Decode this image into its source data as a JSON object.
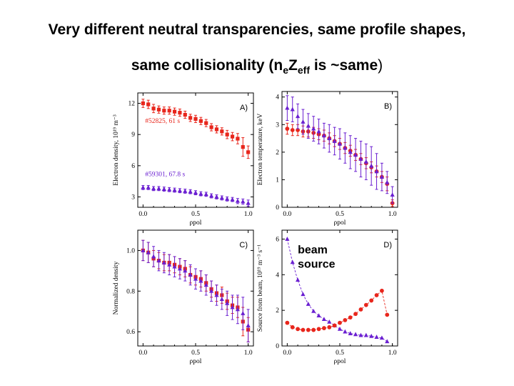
{
  "title_line1": "Very different neutral transparencies, same profile shapes,",
  "title_line2": {
    "prefix": "same collisionality (n",
    "sub1": "e",
    "mid": "Z",
    "sub2": "eff",
    "suffix": " is ~same",
    "close": ")"
  },
  "colors": {
    "red": "#e8261c",
    "purple": "#6a1fd1"
  },
  "chart_data": [
    {
      "id": "A",
      "panel_label": "A)",
      "type": "scatter",
      "ylabel": "Electron density, 10¹⁹ m⁻³",
      "xlabel": "ρpol",
      "xlim": [
        -0.05,
        1.05
      ],
      "ylim": [
        2.0,
        13.0
      ],
      "xticks": [
        0.0,
        0.5,
        1.0
      ],
      "xtick_labels": [
        "0.0",
        "0.5",
        "1.0"
      ],
      "yticks": [
        3,
        6,
        9,
        12
      ],
      "ytick_labels": [
        "3",
        "6",
        "9",
        "12"
      ],
      "annotations": [
        {
          "text": "#52825,  61 s",
          "x": 0.02,
          "y": 10.1,
          "color": "red"
        },
        {
          "text": "#59301,  67.8 s",
          "x": 0.02,
          "y": 5.0,
          "color": "purple"
        }
      ],
      "series": [
        {
          "name": "#52825, 61 s",
          "color": "red",
          "marker": "square",
          "x": [
            0.0,
            0.05,
            0.1,
            0.15,
            0.2,
            0.25,
            0.3,
            0.35,
            0.4,
            0.45,
            0.5,
            0.55,
            0.6,
            0.65,
            0.7,
            0.75,
            0.8,
            0.85,
            0.9,
            0.95,
            1.0
          ],
          "y": [
            12.0,
            11.9,
            11.5,
            11.4,
            11.3,
            11.3,
            11.2,
            11.1,
            10.9,
            10.6,
            10.5,
            10.3,
            10.1,
            9.7,
            9.5,
            9.3,
            9.0,
            8.8,
            8.6,
            7.8,
            7.3
          ],
          "err": [
            0.4,
            0.4,
            0.4,
            0.35,
            0.35,
            0.35,
            0.35,
            0.35,
            0.35,
            0.35,
            0.35,
            0.35,
            0.35,
            0.35,
            0.35,
            0.35,
            0.4,
            0.4,
            0.5,
            0.9,
            0.6
          ]
        },
        {
          "name": "#59301, 67.8 s",
          "color": "purple",
          "marker": "triangle",
          "x": [
            0.0,
            0.05,
            0.1,
            0.15,
            0.2,
            0.25,
            0.3,
            0.35,
            0.4,
            0.45,
            0.5,
            0.55,
            0.6,
            0.65,
            0.7,
            0.75,
            0.8,
            0.85,
            0.9,
            0.95,
            1.0
          ],
          "y": [
            3.9,
            3.9,
            3.8,
            3.8,
            3.75,
            3.7,
            3.65,
            3.6,
            3.55,
            3.5,
            3.4,
            3.3,
            3.25,
            3.1,
            3.0,
            2.9,
            2.8,
            2.75,
            2.6,
            2.55,
            2.4
          ],
          "err": [
            0.2,
            0.2,
            0.2,
            0.2,
            0.2,
            0.2,
            0.2,
            0.2,
            0.2,
            0.2,
            0.2,
            0.2,
            0.2,
            0.2,
            0.2,
            0.2,
            0.2,
            0.2,
            0.25,
            0.25,
            0.3
          ]
        }
      ]
    },
    {
      "id": "B",
      "panel_label": "B)",
      "type": "scatter",
      "ylabel": "Electron temperature, keV",
      "xlabel": "ρpol",
      "xlim": [
        -0.05,
        1.05
      ],
      "ylim": [
        0,
        4.2
      ],
      "xticks": [
        0.0,
        0.5,
        1.0
      ],
      "xtick_labels": [
        "0.0",
        "0.5",
        "1.0"
      ],
      "yticks": [
        0,
        1,
        2,
        3,
        4
      ],
      "ytick_labels": [
        "0",
        "1",
        "2",
        "3",
        "4"
      ],
      "annotations": [],
      "series": [
        {
          "name": "#52825",
          "color": "red",
          "marker": "circle",
          "x": [
            0.0,
            0.05,
            0.1,
            0.15,
            0.2,
            0.25,
            0.3,
            0.35,
            0.4,
            0.45,
            0.5,
            0.55,
            0.6,
            0.65,
            0.7,
            0.75,
            0.8,
            0.85,
            0.9,
            0.95,
            1.0
          ],
          "y": [
            2.85,
            2.8,
            2.8,
            2.75,
            2.75,
            2.7,
            2.65,
            2.6,
            2.5,
            2.4,
            2.3,
            2.15,
            2.05,
            1.9,
            1.75,
            1.6,
            1.45,
            1.3,
            1.1,
            0.85,
            0.15
          ],
          "err": [
            0.2,
            0.2,
            0.2,
            0.2,
            0.2,
            0.2,
            0.2,
            0.2,
            0.2,
            0.2,
            0.2,
            0.2,
            0.2,
            0.2,
            0.2,
            0.2,
            0.2,
            0.2,
            0.2,
            0.25,
            0.12
          ]
        },
        {
          "name": "#59301",
          "color": "purple",
          "marker": "triangle",
          "x": [
            0.0,
            0.05,
            0.1,
            0.15,
            0.2,
            0.25,
            0.3,
            0.35,
            0.4,
            0.45,
            0.5,
            0.55,
            0.6,
            0.65,
            0.7,
            0.75,
            0.8,
            0.85,
            0.9,
            0.95,
            1.0
          ],
          "y": [
            3.6,
            3.55,
            3.3,
            3.1,
            2.95,
            2.85,
            2.75,
            2.6,
            2.5,
            2.4,
            2.3,
            2.15,
            2.0,
            1.9,
            1.75,
            1.65,
            1.5,
            1.3,
            1.1,
            0.9,
            0.45
          ],
          "err": [
            0.45,
            0.45,
            0.45,
            0.45,
            0.45,
            0.45,
            0.45,
            0.45,
            0.5,
            0.5,
            0.55,
            0.55,
            0.6,
            0.6,
            0.65,
            0.65,
            0.7,
            0.65,
            0.5,
            0.4,
            0.3
          ]
        }
      ]
    },
    {
      "id": "C",
      "panel_label": "C)",
      "type": "scatter",
      "ylabel": "Normalized density",
      "xlabel": "ρpol",
      "xlim": [
        -0.05,
        1.05
      ],
      "ylim": [
        0.53,
        1.1
      ],
      "xticks": [
        0.0,
        0.5,
        1.0
      ],
      "xtick_labels": [
        "0.0",
        "0.5",
        "1.0"
      ],
      "yticks": [
        0.6,
        0.8,
        1.0
      ],
      "ytick_labels": [
        "0.6",
        "0.8",
        "1.0"
      ],
      "annotations": [],
      "series": [
        {
          "name": "#52825",
          "color": "red",
          "marker": "square",
          "x": [
            0.0,
            0.05,
            0.1,
            0.15,
            0.2,
            0.25,
            0.3,
            0.35,
            0.4,
            0.45,
            0.5,
            0.55,
            0.6,
            0.65,
            0.7,
            0.75,
            0.8,
            0.85,
            0.9,
            0.95,
            1.0
          ],
          "y": [
            1.0,
            0.99,
            0.96,
            0.95,
            0.94,
            0.94,
            0.93,
            0.92,
            0.91,
            0.88,
            0.87,
            0.86,
            0.84,
            0.81,
            0.79,
            0.78,
            0.75,
            0.73,
            0.72,
            0.65,
            0.61
          ],
          "err": [
            0.05,
            0.05,
            0.04,
            0.04,
            0.04,
            0.04,
            0.04,
            0.04,
            0.04,
            0.04,
            0.04,
            0.04,
            0.04,
            0.04,
            0.04,
            0.04,
            0.04,
            0.04,
            0.05,
            0.07,
            0.06
          ]
        },
        {
          "name": "#59301",
          "color": "purple",
          "marker": "triangle",
          "x": [
            0.0,
            0.05,
            0.1,
            0.15,
            0.2,
            0.25,
            0.3,
            0.35,
            0.4,
            0.45,
            0.5,
            0.55,
            0.6,
            0.65,
            0.7,
            0.75,
            0.8,
            0.85,
            0.9,
            0.95,
            1.0
          ],
          "y": [
            1.0,
            0.99,
            0.97,
            0.95,
            0.94,
            0.93,
            0.92,
            0.91,
            0.9,
            0.88,
            0.86,
            0.85,
            0.83,
            0.8,
            0.78,
            0.76,
            0.74,
            0.72,
            0.71,
            0.69,
            0.63
          ],
          "err": [
            0.05,
            0.05,
            0.05,
            0.05,
            0.05,
            0.05,
            0.05,
            0.05,
            0.05,
            0.05,
            0.05,
            0.05,
            0.05,
            0.05,
            0.05,
            0.05,
            0.06,
            0.06,
            0.07,
            0.08,
            0.08
          ]
        }
      ]
    },
    {
      "id": "D",
      "panel_label": "D)",
      "type": "line",
      "ylabel": "Source from beam, 10¹⁹ m⁻³ s⁻¹",
      "xlabel": "ρpol",
      "xlim": [
        -0.05,
        1.05
      ],
      "ylim": [
        0,
        6.5
      ],
      "xticks": [
        0.0,
        0.5,
        1.0
      ],
      "xtick_labels": [
        "0.0",
        "0.5",
        "1.0"
      ],
      "yticks": [
        0,
        2,
        4,
        6
      ],
      "ytick_labels": [
        "0",
        "2",
        "4",
        "6"
      ],
      "annotations": [
        {
          "text": "beam",
          "x": 0.1,
          "y": 5.2,
          "color": "black",
          "big": true
        },
        {
          "text": "source",
          "x": 0.1,
          "y": 4.4,
          "color": "black",
          "big": true
        }
      ],
      "series": [
        {
          "name": "#59301",
          "color": "purple",
          "marker": "triangle",
          "dashed": true,
          "x": [
            0.0,
            0.05,
            0.1,
            0.15,
            0.2,
            0.25,
            0.3,
            0.35,
            0.4,
            0.45,
            0.5,
            0.55,
            0.6,
            0.65,
            0.7,
            0.75,
            0.8,
            0.85,
            0.9,
            0.95
          ],
          "y": [
            6.0,
            4.7,
            3.7,
            2.9,
            2.35,
            1.95,
            1.7,
            1.5,
            1.35,
            1.15,
            0.95,
            0.8,
            0.7,
            0.65,
            0.6,
            0.6,
            0.55,
            0.5,
            0.45,
            0.25
          ],
          "err": []
        },
        {
          "name": "#52825",
          "color": "red",
          "marker": "circle",
          "dashed": true,
          "x": [
            0.0,
            0.05,
            0.1,
            0.15,
            0.2,
            0.25,
            0.3,
            0.35,
            0.4,
            0.45,
            0.5,
            0.55,
            0.6,
            0.65,
            0.7,
            0.75,
            0.8,
            0.85,
            0.9,
            0.95
          ],
          "y": [
            1.3,
            1.05,
            0.95,
            0.9,
            0.9,
            0.9,
            0.95,
            1.0,
            1.05,
            1.15,
            1.3,
            1.45,
            1.6,
            1.8,
            2.05,
            2.3,
            2.55,
            2.85,
            3.1,
            1.75
          ],
          "err": []
        }
      ]
    }
  ]
}
